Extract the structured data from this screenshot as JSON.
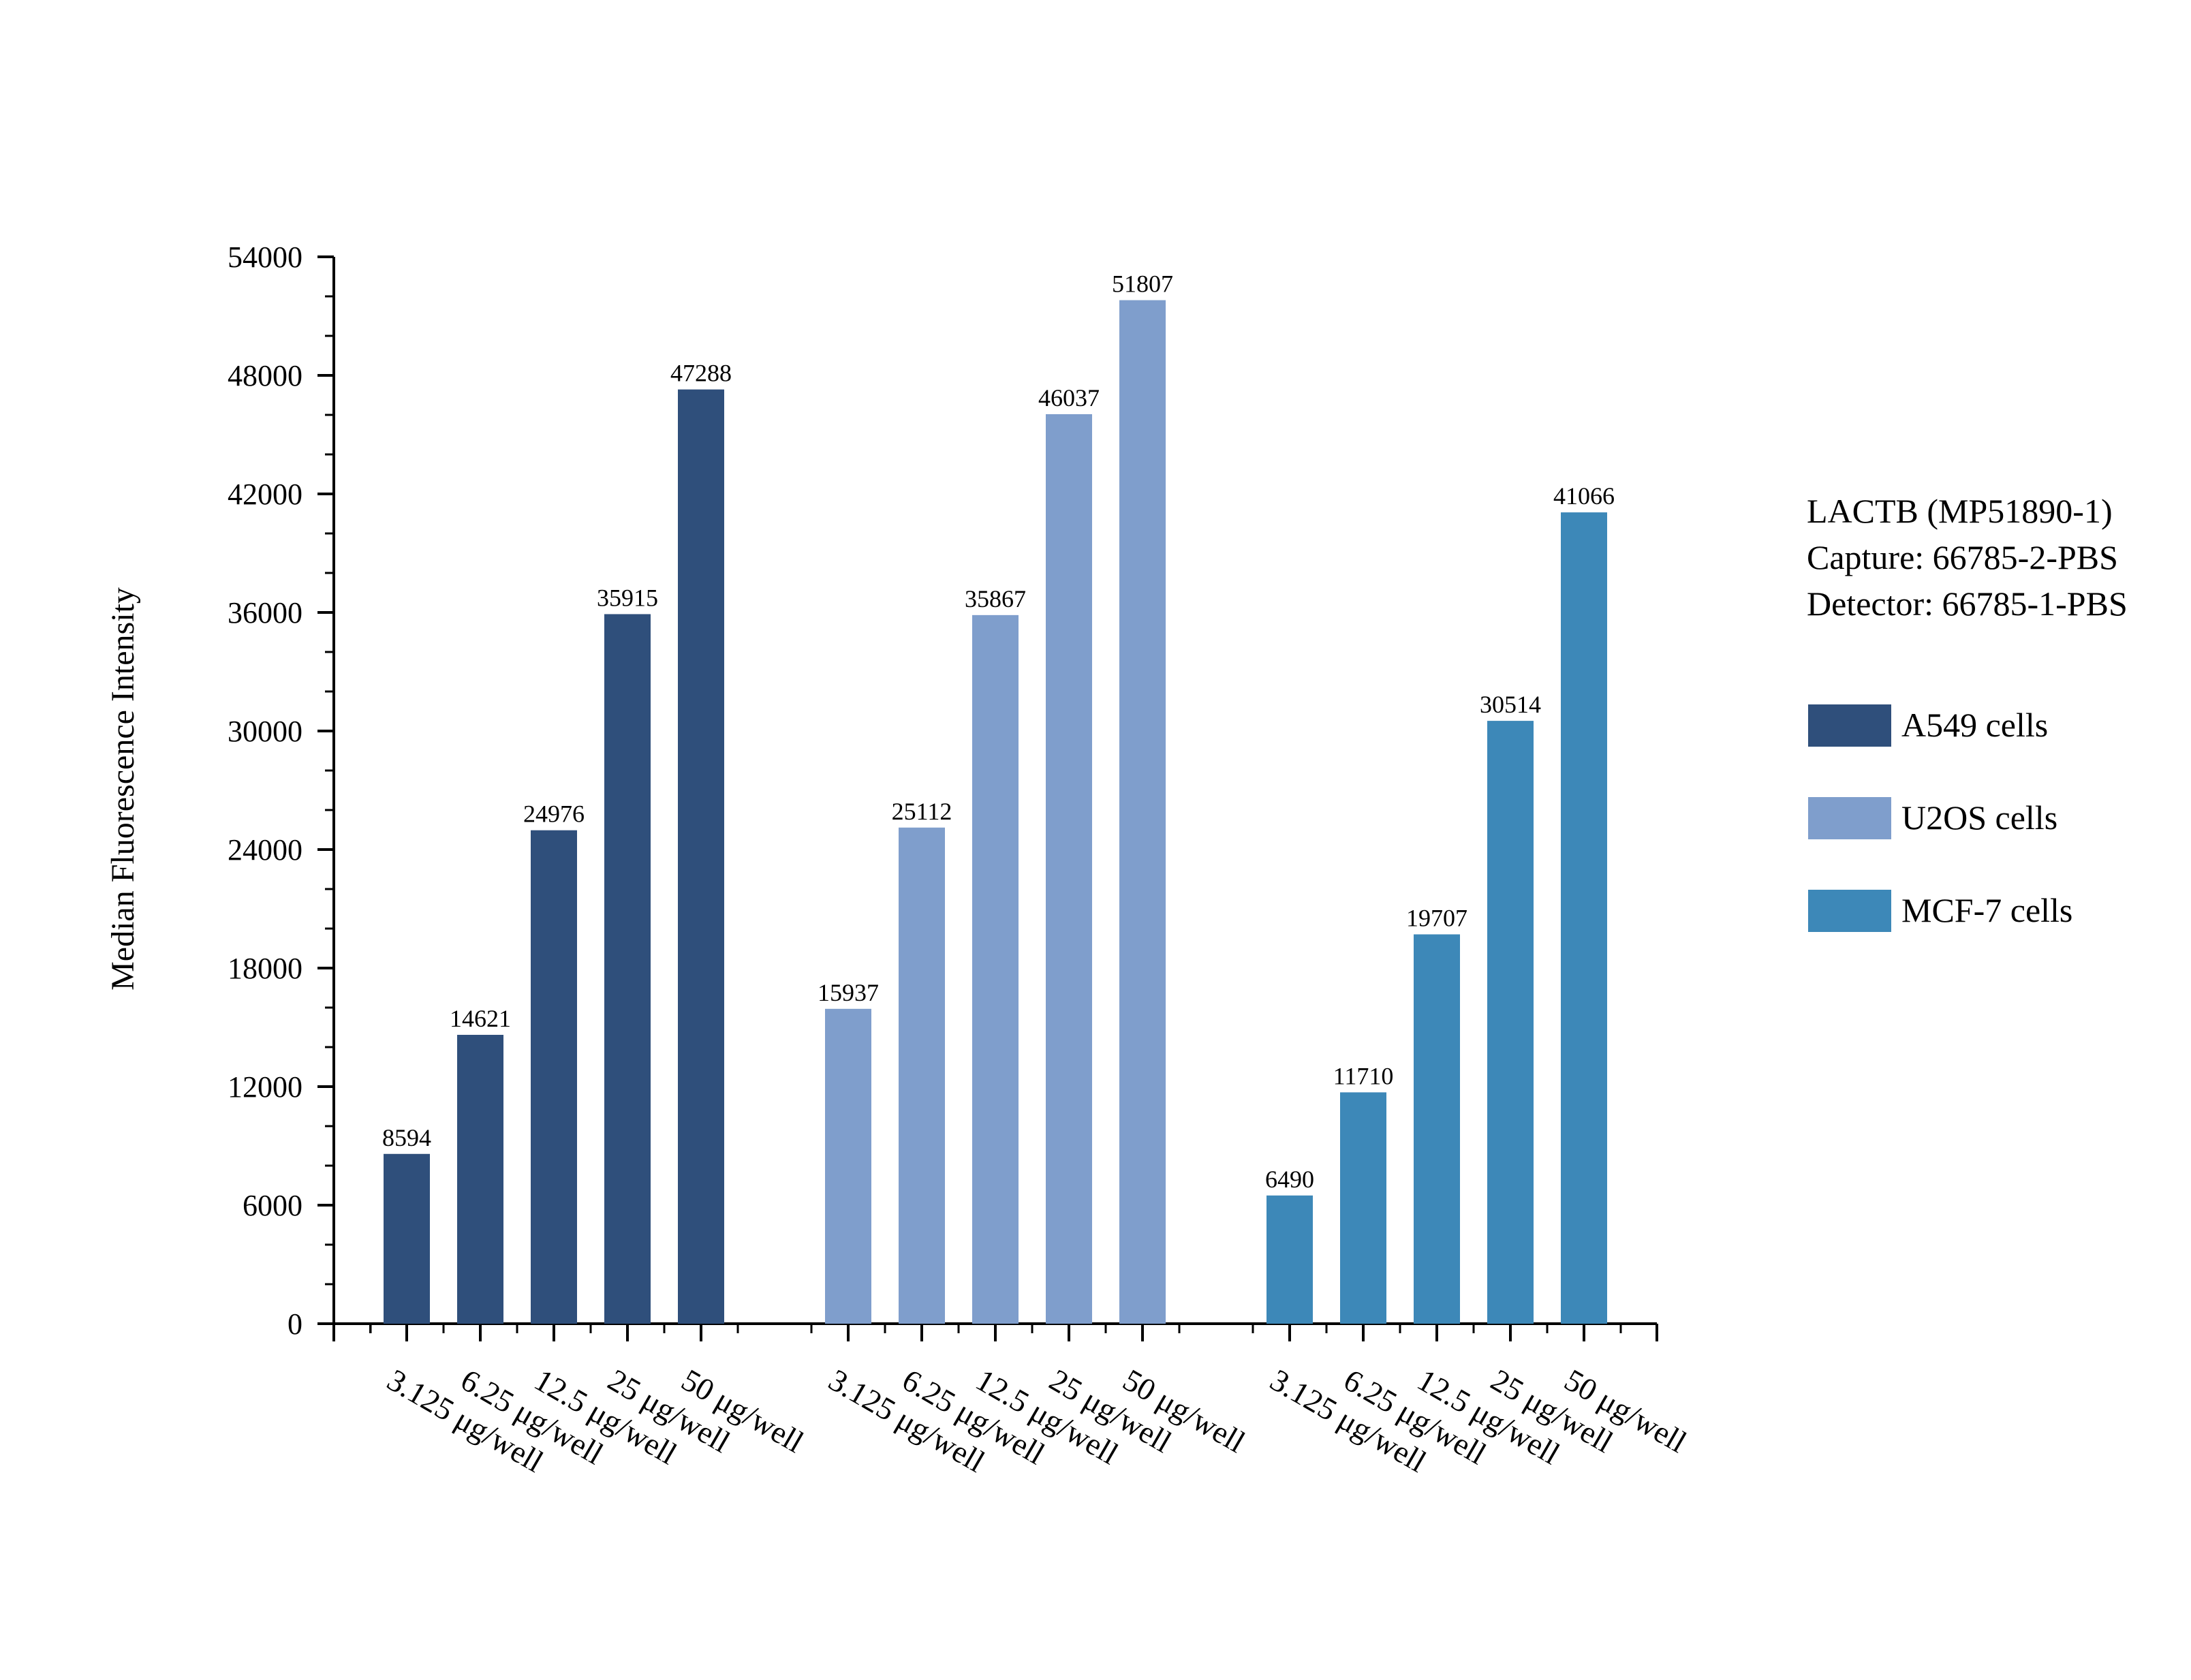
{
  "chart_data": {
    "type": "bar",
    "ylabel": "Median Fluorescence Intensity",
    "xlabel": "",
    "ylim": [
      0,
      54000
    ],
    "yticks": [
      0,
      6000,
      12000,
      18000,
      24000,
      30000,
      36000,
      42000,
      48000,
      54000
    ],
    "grid": false,
    "legend_position": "right",
    "categories": [
      "3.125 μg/well",
      "6.25 μg/well",
      "12.5 μg/well",
      "25 μg/well",
      "50 μg/well"
    ],
    "series": [
      {
        "name": "A549 cells",
        "color": "#2f4f7b",
        "values": [
          8594,
          14621,
          24976,
          35915,
          47288
        ]
      },
      {
        "name": "U2OS cells",
        "color": "#7f9ecc",
        "values": [
          15937,
          25112,
          35867,
          46037,
          51807
        ]
      },
      {
        "name": "MCF-7 cells",
        "color": "#3d88b8",
        "values": [
          6490,
          11710,
          19707,
          30514,
          41066
        ]
      }
    ]
  },
  "info_lines": [
    "LACTB (MP51890-1)",
    "Capture: 66785-2-PBS",
    "Detector: 66785-1-PBS"
  ]
}
